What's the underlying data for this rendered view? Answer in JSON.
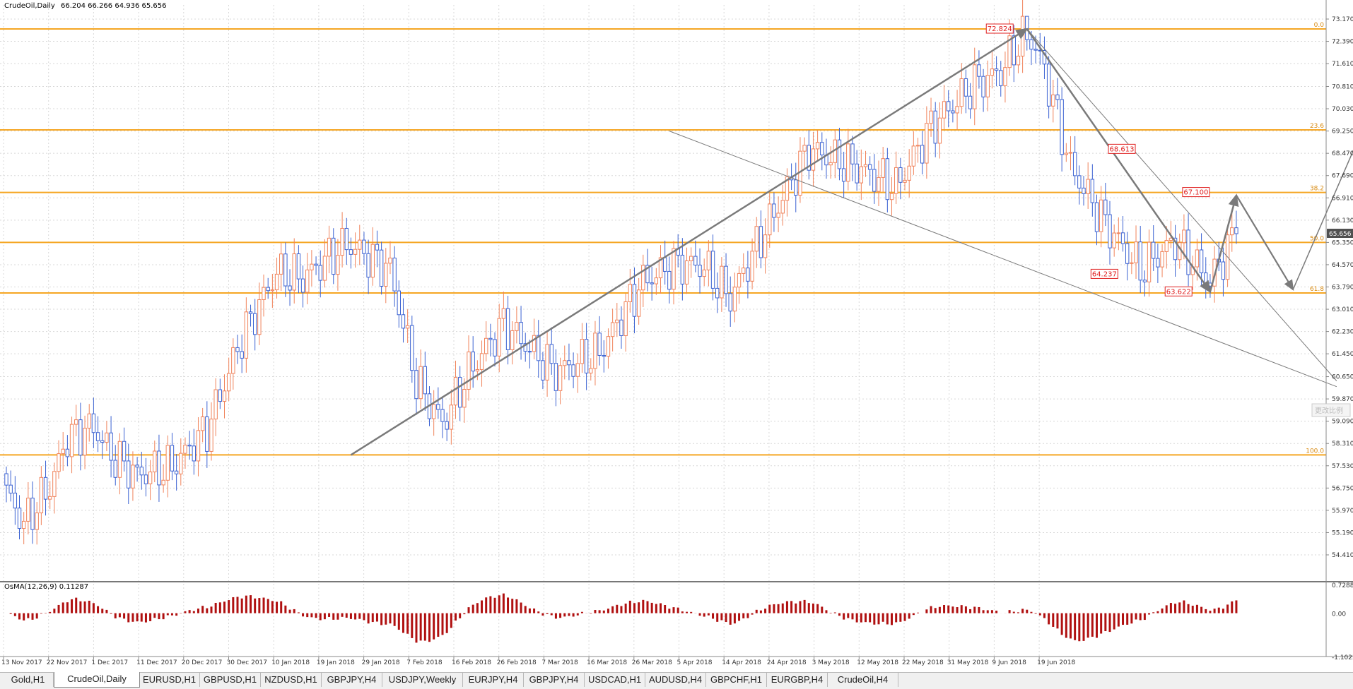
{
  "window": {
    "symbol": "CrudeOil,Daily",
    "ohlc": "66.204 66.266 64.936 65.656"
  },
  "price_axis": {
    "labels": [
      "73.170",
      "72.390",
      "71.610",
      "70.810",
      "70.030",
      "69.250",
      "68.470",
      "67.690",
      "66.910",
      "66.130",
      "65.350",
      "64.570",
      "63.790",
      "63.010",
      "62.230",
      "61.450",
      "60.650",
      "59.870",
      "59.090",
      "58.310",
      "57.530",
      "56.750",
      "55.970",
      "55.190",
      "54.410"
    ],
    "current_price": "65.656"
  },
  "date_axis": {
    "labels": [
      "13 Nov 2017",
      "22 Nov 2017",
      "1 Dec 2017",
      "11 Dec 2017",
      "20 Dec 2017",
      "30 Dec 2017",
      "10 Jan 2018",
      "19 Jan 2018",
      "29 Jan 2018",
      "7 Feb 2018",
      "16 Feb 2018",
      "26 Feb 2018",
      "7 Mar 2018",
      "16 Mar 2018",
      "26 Mar 2018",
      "5 Apr 2018",
      "14 Apr 2018",
      "24 Apr 2018",
      "3 May 2018",
      "12 May 2018",
      "22 May 2018",
      "31 May 2018",
      "9 Jun 2018",
      "19 Jun 2018"
    ]
  },
  "fibonacci": {
    "levels": [
      {
        "label": "0.0",
        "price": 72.824
      },
      {
        "label": "23.6",
        "price": 69.29
      },
      {
        "label": "38.2",
        "price": 67.1
      },
      {
        "label": "50.0",
        "price": 65.35
      },
      {
        "label": "61.8",
        "price": 63.58
      },
      {
        "label": "100.0",
        "price": 57.91
      }
    ],
    "color": "#f5a623"
  },
  "annotations": {
    "peak": "72.824",
    "swing_high": "68.613",
    "local_high": "67.100",
    "local_low": "64.237",
    "swing_low": "63.622"
  },
  "osma": {
    "label": "OsMA(12,26,9) 0.11287",
    "axis": [
      "0.72882",
      "0.00",
      "-1.10224"
    ]
  },
  "watermark": "更改比例",
  "colors": {
    "bull": "#f0835b",
    "bear": "#3b62d2",
    "osma": "#b01010",
    "arrow": "#7a7a7a",
    "grid": "#d8d8d8"
  },
  "tabs": [
    "Gold,H1",
    "CrudeOil,Daily",
    "EURUSD,H1",
    "GBPUSD,H1",
    "NZDUSD,H1",
    "GBPJPY,H4",
    "USDJPY,Weekly",
    "EURJPY,H4",
    "GBPJPY,H4",
    "USDCAD,H1",
    "AUDUSD,H4",
    "GBPCHF,H1",
    "EURGBP,H4",
    "CrudeOil,H4"
  ],
  "active_tab": "CrudeOil,Daily",
  "chart_data": {
    "type": "candlestick",
    "anchors": [
      [
        0,
        56.6
      ],
      [
        4,
        55.5
      ],
      [
        10,
        56.8
      ],
      [
        14,
        58.5
      ],
      [
        20,
        58.9
      ],
      [
        24,
        57.9
      ],
      [
        30,
        57.2
      ],
      [
        38,
        57.5
      ],
      [
        46,
        58.8
      ],
      [
        54,
        62.0
      ],
      [
        62,
        64.3
      ],
      [
        68,
        64.1
      ],
      [
        78,
        65.3
      ],
      [
        88,
        64.4
      ],
      [
        94,
        60.5
      ],
      [
        100,
        59.0
      ],
      [
        106,
        60.8
      ],
      [
        114,
        62.5
      ],
      [
        126,
        60.8
      ],
      [
        136,
        61.5
      ],
      [
        146,
        64.0
      ],
      [
        154,
        64.6
      ],
      [
        160,
        64.5
      ],
      [
        166,
        63.4
      ],
      [
        174,
        65.8
      ],
      [
        184,
        68.6
      ],
      [
        196,
        67.9
      ],
      [
        204,
        67.3
      ],
      [
        212,
        69.4
      ],
      [
        222,
        70.9
      ],
      [
        228,
        71.3
      ],
      [
        234,
        72.82
      ],
      [
        238,
        71.4
      ],
      [
        244,
        68.0
      ],
      [
        252,
        66.0
      ],
      [
        260,
        64.4
      ],
      [
        268,
        65.4
      ],
      [
        276,
        64.0
      ],
      [
        282,
        65.7
      ]
    ],
    "start_date": "13 Nov 2017",
    "end_date": "21 Jun 2018",
    "ylim": [
      54.41,
      73.17
    ],
    "osma_ylim": [
      -1.10224,
      0.72882
    ],
    "grid": true
  }
}
